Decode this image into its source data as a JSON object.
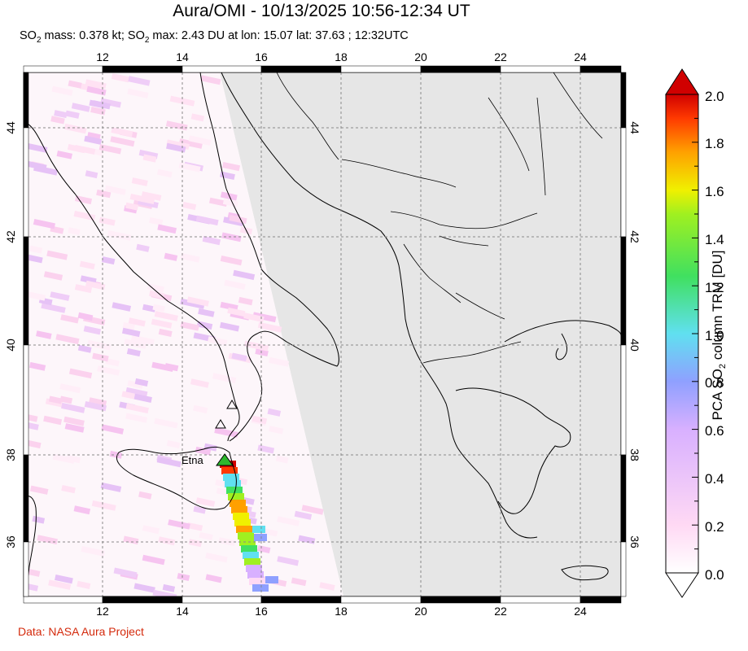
{
  "header": {
    "title": "Aura/OMI - 10/13/2025 10:56-12:34 UT",
    "subtitle_prefix": "SO",
    "subtitle_sub1": "2",
    "subtitle_mid": " mass: 0.378 kt; SO",
    "subtitle_sub2": "2",
    "subtitle_rest": " max: 2.43 DU at lon: 15.07 lat: 37.63 ; 12:32UTC"
  },
  "map": {
    "lon_ticks": [
      "12",
      "14",
      "16",
      "18",
      "20",
      "22",
      "24"
    ],
    "lat_ticks": [
      "44",
      "42",
      "40",
      "38",
      "36"
    ],
    "volcano_label": "Etna",
    "land_color": "#e6e6e6",
    "sea_color": "#ffffff",
    "grid_color": "#8a8a8a"
  },
  "colorbar": {
    "ticks": [
      "2.0",
      "1.8",
      "1.6",
      "1.4",
      "1.2",
      "1.0",
      "0.8",
      "0.6",
      "0.4",
      "0.2",
      "0.0"
    ],
    "title_prefix": "PCA SO",
    "title_sub": "2",
    "title_rest": " column TRM [DU]",
    "vmin": 0.0,
    "vmax": 2.0,
    "colors": [
      "#ffffff",
      "#ffd9f4",
      "#d8b0ff",
      "#8fa0ff",
      "#60e0f0",
      "#40e060",
      "#a0f020",
      "#f0f000",
      "#ffa000",
      "#ff3a00",
      "#d00000"
    ]
  },
  "footer": {
    "credit": "Data: NASA Aura Project"
  }
}
